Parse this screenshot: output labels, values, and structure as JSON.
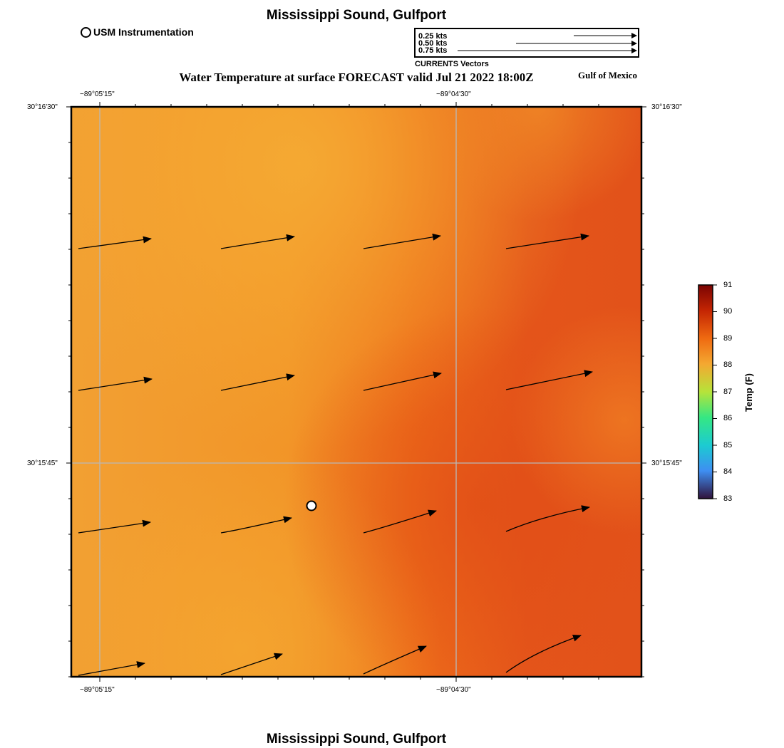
{
  "header": {
    "title": "Mississippi Sound, Gulfport",
    "subtitle": "Water Temperature at surface FORECAST valid Jul 21 2022 18:00Z",
    "region_label": "Gulf of Mexico",
    "footer_title": "Mississippi Sound, Gulfport"
  },
  "legend": {
    "station_label": "USM Instrumentation",
    "vector_scale": [
      {
        "label": "0.25 kts",
        "speed_kts": 0.25
      },
      {
        "label": "0.50 kts",
        "speed_kts": 0.5
      },
      {
        "label": "0.75 kts",
        "speed_kts": 0.75
      }
    ],
    "vector_caption": "CURRENTS Vectors"
  },
  "map": {
    "lon_labels_top": [
      "−89°05'15\"",
      "−89°04'30\""
    ],
    "lon_labels_bottom": [
      "−89°05'15\"",
      "−89°04'30\""
    ],
    "lat_labels_left": [
      "30°16'30\"",
      "30°15'45\""
    ],
    "lat_labels_right": [
      "30°16'30\"",
      "30°15'45\""
    ],
    "station": {
      "name": "USM Instrumentation"
    }
  },
  "colorbar": {
    "title": "Temp (F)",
    "ticks": [
      "91",
      "90",
      "89",
      "88",
      "87",
      "86",
      "85",
      "84",
      "83"
    ],
    "colors": [
      "#7a0403",
      "#c42503",
      "#ef6a11",
      "#f4a831",
      "#b6e33a",
      "#35e783",
      "#1ccbd1",
      "#3e8ef2",
      "#30123b"
    ]
  }
}
